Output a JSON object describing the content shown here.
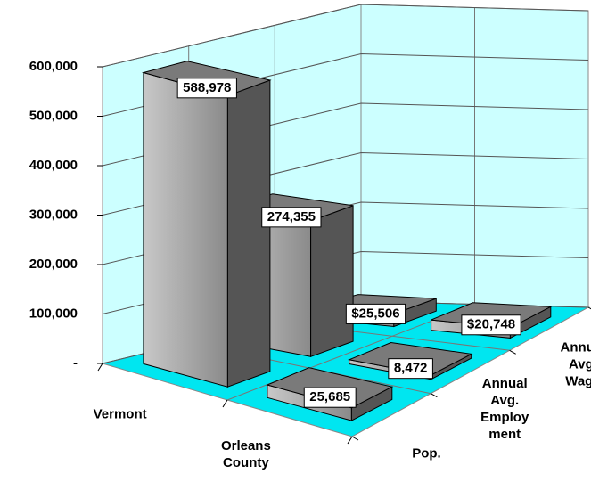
{
  "chart_data": {
    "type": "bar3d",
    "categories": [
      "Vermont",
      "Orleans County"
    ],
    "series": [
      {
        "name": "Pop.",
        "color": "#999999",
        "values": [
          588978,
          25685
        ],
        "value_labels": [
          "588,978",
          "25,685"
        ]
      },
      {
        "name": "Annual Avg. Employment",
        "color": "#999999",
        "values": [
          274355,
          8472
        ],
        "value_labels": [
          "274,355",
          "8,472"
        ]
      },
      {
        "name": "Annual Avg. Wage",
        "color": "#999999",
        "values": [
          25506,
          20748
        ],
        "value_labels": [
          "$25,506",
          "$20,748"
        ]
      }
    ],
    "ylim": [
      0,
      600000
    ],
    "yticks": [
      {
        "value": 0,
        "label": "-"
      },
      {
        "value": 100000,
        "label": "100,000"
      },
      {
        "value": 200000,
        "label": "200,000"
      },
      {
        "value": 300000,
        "label": "300,000"
      },
      {
        "value": 400000,
        "label": "400,000"
      },
      {
        "value": 500000,
        "label": "500,000"
      },
      {
        "value": 600000,
        "label": "600,000"
      }
    ],
    "grid": true
  }
}
